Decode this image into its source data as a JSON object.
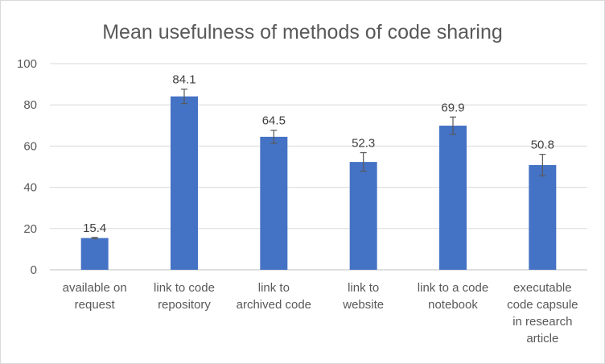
{
  "chart_data": {
    "type": "bar",
    "title": "Mean usefulness of methods of code sharing",
    "xlabel": "",
    "ylabel": "",
    "ylim": [
      0,
      100
    ],
    "yticks": [
      "0",
      "20",
      "40",
      "60",
      "80",
      "100"
    ],
    "grid": true,
    "categories": [
      [
        "available on",
        "request"
      ],
      [
        "link to code",
        "repository"
      ],
      [
        "link to",
        "archived code"
      ],
      [
        "link to",
        "website"
      ],
      [
        "link to a code",
        "notebook"
      ],
      [
        "executable",
        "code capsule",
        "in research",
        "article"
      ]
    ],
    "values": [
      15.4,
      84.1,
      64.5,
      52.3,
      69.9,
      50.8
    ],
    "value_labels": [
      "15.4",
      "84.1",
      "64.5",
      "52.3",
      "69.9",
      "50.8"
    ],
    "error": [
      0.3,
      3.5,
      3.2,
      4.5,
      4.2,
      5.2
    ],
    "colors": {
      "bar": "#4472c4",
      "grid": "#d9d9d9",
      "axis": "#bfbfbf",
      "errorbar": "#595959"
    }
  }
}
